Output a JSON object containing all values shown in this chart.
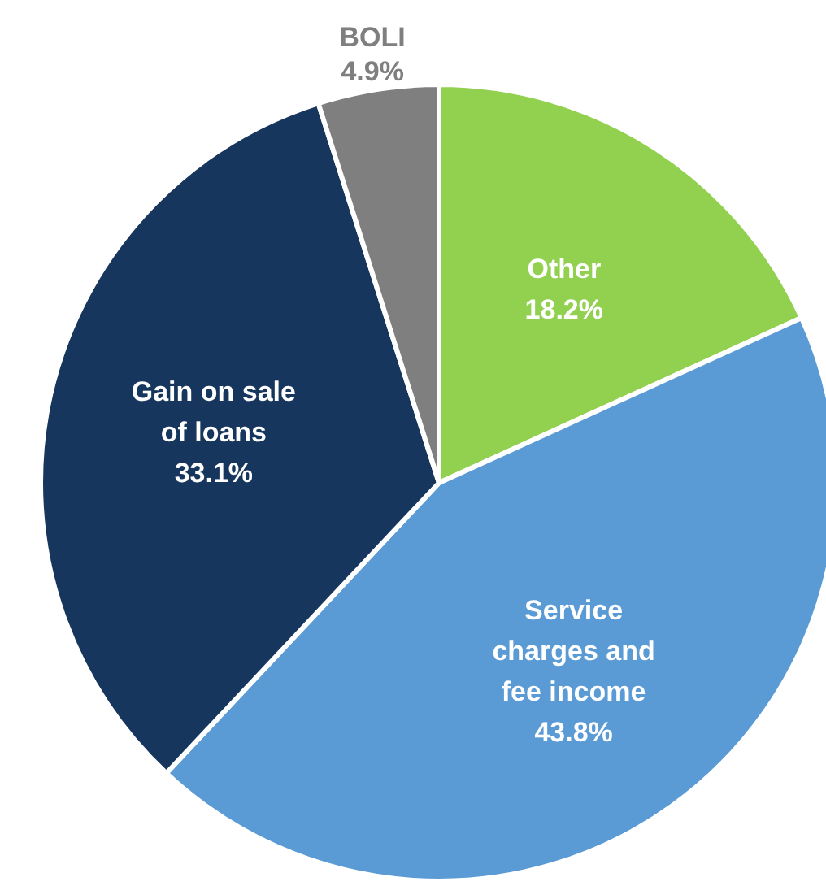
{
  "chart_data": {
    "type": "pie",
    "categories": [
      "Other",
      "Service charges and fee income",
      "Gain on sale of loans",
      "BOLI"
    ],
    "values": [
      18.2,
      43.8,
      33.1,
      4.9
    ],
    "colors": [
      "#92d050",
      "#5b9bd5",
      "#17365d",
      "#7f7f7f"
    ],
    "value_labels": [
      "18.2%",
      "43.8%",
      "33.1%",
      "4.9%"
    ]
  }
}
